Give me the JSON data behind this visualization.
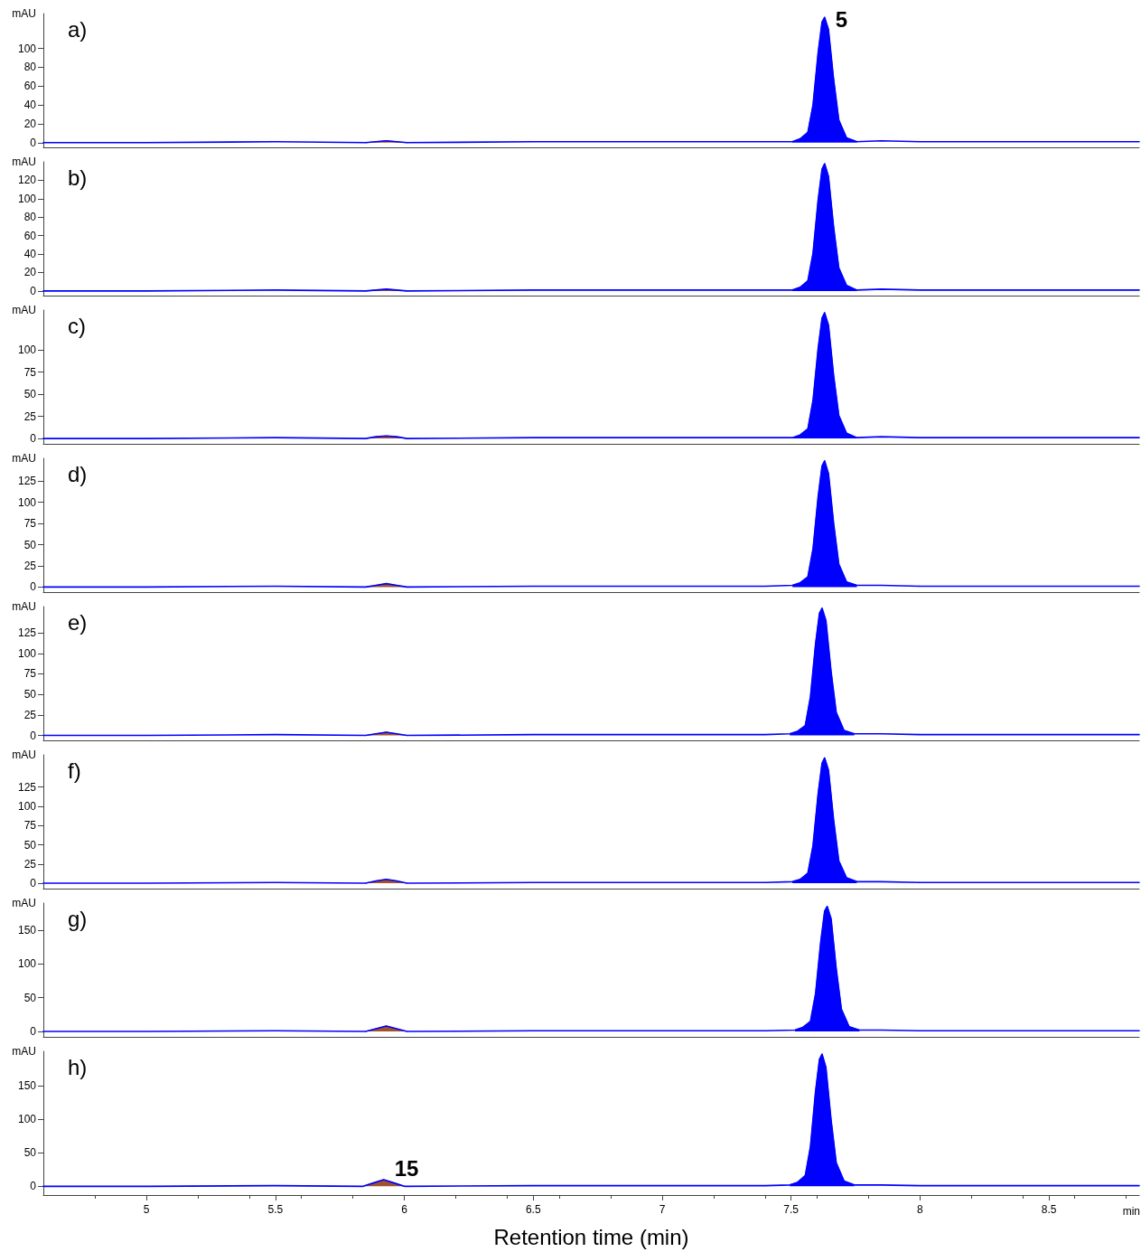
{
  "chart_data": [
    {
      "type": "line",
      "title": "a)",
      "ylabel": "mAU",
      "xlim": [
        4.6,
        8.85
      ],
      "ylim": [
        -5,
        137
      ],
      "yticks": [
        0,
        20,
        40,
        60,
        80,
        100
      ],
      "tick_labels": "y",
      "grid": false,
      "marker": "none",
      "annotations": [
        {
          "text": "5",
          "x": 7.63,
          "y": 133
        }
      ],
      "series": [
        {
          "type": "line",
          "color": "#0000ff",
          "x": [
            4.6,
            5.0,
            5.5,
            5.85,
            5.89,
            5.93,
            5.97,
            6.01,
            6.5,
            7.0,
            7.4,
            7.505,
            7.535,
            7.565,
            7.585,
            7.605,
            7.62,
            7.63,
            7.645,
            7.665,
            7.685,
            7.715,
            7.755,
            7.85,
            8.0,
            8.5,
            8.85
          ],
          "values": [
            0,
            0,
            1,
            0,
            1,
            2,
            1,
            0,
            1,
            1,
            1,
            1,
            4,
            11,
            40,
            96,
            128,
            133,
            120,
            67,
            24,
            5,
            1,
            2,
            1,
            1,
            1
          ]
        },
        {
          "type": "area",
          "color": "#0000ff",
          "x": [
            7.505,
            7.535,
            7.565,
            7.585,
            7.605,
            7.62,
            7.63,
            7.645,
            7.665,
            7.685,
            7.715,
            7.755
          ],
          "values": [
            1,
            4,
            11,
            40,
            96,
            128,
            133,
            120,
            67,
            24,
            5,
            1
          ]
        },
        {
          "type": "area",
          "color": "#a0522d",
          "x": [
            5.85,
            5.89,
            5.93,
            5.97,
            6.01
          ],
          "values": [
            0,
            1,
            2,
            1,
            0
          ]
        }
      ]
    },
    {
      "type": "line",
      "title": "b)",
      "ylabel": "mAU",
      "xlim": [
        4.6,
        8.85
      ],
      "ylim": [
        -5,
        140
      ],
      "yticks": [
        0,
        20,
        40,
        60,
        80,
        100,
        120
      ],
      "tick_labels": "y",
      "grid": false,
      "marker": "none",
      "series": [
        {
          "type": "line",
          "color": "#0000ff",
          "x": [
            4.6,
            5.0,
            5.5,
            5.85,
            5.89,
            5.93,
            5.97,
            6.01,
            6.5,
            7.0,
            7.4,
            7.505,
            7.535,
            7.565,
            7.585,
            7.605,
            7.62,
            7.63,
            7.645,
            7.665,
            7.685,
            7.715,
            7.755,
            7.85,
            8.0,
            8.5,
            8.85
          ],
          "values": [
            0,
            0,
            1,
            0,
            1,
            2,
            1,
            0,
            1,
            1,
            1,
            1,
            4,
            11,
            41,
            99,
            132,
            138,
            124,
            69,
            25,
            6,
            1,
            2,
            1,
            1,
            1
          ]
        },
        {
          "type": "area",
          "color": "#0000ff",
          "x": [
            7.505,
            7.535,
            7.565,
            7.585,
            7.605,
            7.62,
            7.63,
            7.645,
            7.665,
            7.685,
            7.715,
            7.755
          ],
          "values": [
            1,
            4,
            11,
            41,
            99,
            132,
            138,
            124,
            69,
            25,
            6,
            1
          ]
        },
        {
          "type": "area",
          "color": "#a0522d",
          "x": [
            5.85,
            5.89,
            5.93,
            5.97,
            6.01
          ],
          "values": [
            0,
            1,
            2,
            1,
            0
          ]
        }
      ]
    },
    {
      "type": "line",
      "title": "c)",
      "ylabel": "mAU",
      "xlim": [
        4.6,
        8.85
      ],
      "ylim": [
        -6,
        145
      ],
      "yticks": [
        0,
        25,
        50,
        75,
        100
      ],
      "tick_labels": "y",
      "grid": false,
      "marker": "none",
      "series": [
        {
          "type": "line",
          "color": "#0000ff",
          "x": [
            4.6,
            5.0,
            5.5,
            5.85,
            5.89,
            5.93,
            5.97,
            6.01,
            6.5,
            7.0,
            7.4,
            7.505,
            7.535,
            7.565,
            7.585,
            7.605,
            7.62,
            7.63,
            7.645,
            7.665,
            7.685,
            7.715,
            7.755,
            7.85,
            8.0,
            8.5,
            8.85
          ],
          "values": [
            0,
            0,
            1,
            0,
            2,
            3,
            2,
            0,
            1,
            1,
            1,
            1,
            4,
            11,
            43,
            102,
            136,
            142,
            128,
            71,
            26,
            6,
            1,
            2,
            1,
            1,
            1
          ]
        },
        {
          "type": "area",
          "color": "#0000ff",
          "x": [
            7.505,
            7.535,
            7.565,
            7.585,
            7.605,
            7.62,
            7.63,
            7.645,
            7.665,
            7.685,
            7.715,
            7.755
          ],
          "values": [
            1,
            4,
            11,
            43,
            102,
            136,
            142,
            128,
            71,
            26,
            6,
            1
          ]
        },
        {
          "type": "area",
          "color": "#a0522d",
          "x": [
            5.85,
            5.89,
            5.93,
            5.97,
            6.01
          ],
          "values": [
            0,
            2,
            3,
            2,
            0
          ]
        }
      ]
    },
    {
      "type": "line",
      "title": "d)",
      "ylabel": "mAU",
      "xlim": [
        4.6,
        8.85
      ],
      "ylim": [
        -6,
        152
      ],
      "yticks": [
        0,
        25,
        50,
        75,
        100,
        125
      ],
      "tick_labels": "y",
      "grid": false,
      "marker": "none",
      "series": [
        {
          "type": "line",
          "color": "#0000ff",
          "x": [
            4.6,
            5.0,
            5.5,
            5.85,
            5.89,
            5.93,
            5.97,
            6.01,
            6.5,
            7.0,
            7.4,
            7.505,
            7.535,
            7.565,
            7.585,
            7.605,
            7.62,
            7.63,
            7.645,
            7.665,
            7.685,
            7.715,
            7.755,
            7.85,
            8.0,
            8.5,
            8.85
          ],
          "values": [
            0,
            0,
            1,
            0,
            2,
            4,
            2,
            0,
            1,
            1,
            1,
            2,
            5,
            12,
            45,
            107,
            143,
            149,
            134,
            75,
            27,
            6,
            2,
            2,
            1,
            1,
            1
          ]
        },
        {
          "type": "area",
          "color": "#0000ff",
          "x": [
            7.505,
            7.535,
            7.565,
            7.585,
            7.605,
            7.62,
            7.63,
            7.645,
            7.665,
            7.685,
            7.715,
            7.755
          ],
          "values": [
            2,
            5,
            12,
            45,
            107,
            143,
            149,
            134,
            75,
            27,
            6,
            2
          ]
        },
        {
          "type": "area",
          "color": "#a0522d",
          "x": [
            5.85,
            5.89,
            5.93,
            5.97,
            6.01
          ],
          "values": [
            0,
            2,
            4,
            2,
            0
          ]
        }
      ]
    },
    {
      "type": "line",
      "title": "e)",
      "ylabel": "mAU",
      "xlim": [
        4.6,
        8.85
      ],
      "ylim": [
        -6,
        157
      ],
      "yticks": [
        0,
        25,
        50,
        75,
        100,
        125
      ],
      "tick_labels": "y",
      "grid": false,
      "marker": "none",
      "series": [
        {
          "type": "line",
          "color": "#0000ff",
          "x": [
            4.6,
            5.0,
            5.5,
            5.85,
            5.89,
            5.93,
            5.97,
            6.01,
            6.5,
            7.0,
            7.4,
            7.495,
            7.525,
            7.555,
            7.575,
            7.595,
            7.61,
            7.62,
            7.635,
            7.655,
            7.675,
            7.705,
            7.745,
            7.85,
            8.0,
            8.5,
            8.85
          ],
          "values": [
            0,
            0,
            1,
            0,
            2,
            4,
            2,
            0,
            1,
            1,
            1,
            2,
            5,
            12,
            47,
            112,
            149,
            155,
            140,
            78,
            28,
            6,
            2,
            2,
            1,
            1,
            1
          ]
        },
        {
          "type": "area",
          "color": "#0000ff",
          "x": [
            7.495,
            7.525,
            7.555,
            7.575,
            7.595,
            7.61,
            7.62,
            7.635,
            7.655,
            7.675,
            7.705,
            7.745
          ],
          "values": [
            2,
            5,
            12,
            47,
            112,
            149,
            155,
            140,
            78,
            28,
            6,
            2
          ]
        },
        {
          "type": "area",
          "color": "#a0522d",
          "x": [
            5.85,
            5.89,
            5.93,
            5.97,
            6.01
          ],
          "values": [
            0,
            2,
            4,
            2,
            0
          ]
        }
      ]
    },
    {
      "type": "line",
      "title": "f)",
      "ylabel": "mAU",
      "xlim": [
        4.6,
        8.85
      ],
      "ylim": [
        -7,
        167
      ],
      "yticks": [
        0,
        25,
        50,
        75,
        100,
        125
      ],
      "tick_labels": "y",
      "grid": false,
      "marker": "none",
      "series": [
        {
          "type": "line",
          "color": "#0000ff",
          "x": [
            4.6,
            5.0,
            5.5,
            5.85,
            5.89,
            5.93,
            5.97,
            6.01,
            6.5,
            7.0,
            7.4,
            7.505,
            7.535,
            7.565,
            7.585,
            7.605,
            7.62,
            7.63,
            7.645,
            7.665,
            7.685,
            7.715,
            7.755,
            7.85,
            8.0,
            8.5,
            8.85
          ],
          "values": [
            0,
            0,
            1,
            0,
            3,
            5,
            3,
            0,
            1,
            1,
            1,
            2,
            5,
            13,
            49,
            117,
            156,
            163,
            147,
            82,
            29,
            7,
            2,
            2,
            1,
            1,
            1
          ]
        },
        {
          "type": "area",
          "color": "#0000ff",
          "x": [
            7.505,
            7.535,
            7.565,
            7.585,
            7.605,
            7.62,
            7.63,
            7.645,
            7.665,
            7.685,
            7.715,
            7.755
          ],
          "values": [
            2,
            5,
            13,
            49,
            117,
            156,
            163,
            147,
            82,
            29,
            7,
            2
          ]
        },
        {
          "type": "area",
          "color": "#a0522d",
          "x": [
            5.85,
            5.89,
            5.93,
            5.97,
            6.01
          ],
          "values": [
            0,
            3,
            5,
            3,
            0
          ]
        }
      ]
    },
    {
      "type": "line",
      "title": "g)",
      "ylabel": "mAU",
      "xlim": [
        4.6,
        8.85
      ],
      "ylim": [
        -8,
        190
      ],
      "yticks": [
        0,
        50,
        100,
        150
      ],
      "tick_labels": "y",
      "grid": false,
      "marker": "none",
      "series": [
        {
          "type": "line",
          "color": "#0000ff",
          "x": [
            4.6,
            5.0,
            5.5,
            5.85,
            5.89,
            5.93,
            5.97,
            6.01,
            6.5,
            7.0,
            7.4,
            7.515,
            7.545,
            7.575,
            7.595,
            7.615,
            7.63,
            7.64,
            7.655,
            7.675,
            7.695,
            7.725,
            7.765,
            7.85,
            8.0,
            8.5,
            8.85
          ],
          "values": [
            0,
            0,
            1,
            0,
            4,
            8,
            4,
            0,
            1,
            1,
            1,
            2,
            6,
            15,
            56,
            133,
            178,
            185,
            167,
            93,
            33,
            7,
            2,
            2,
            1,
            1,
            1
          ]
        },
        {
          "type": "area",
          "color": "#0000ff",
          "x": [
            7.515,
            7.545,
            7.575,
            7.595,
            7.615,
            7.63,
            7.64,
            7.655,
            7.675,
            7.695,
            7.725,
            7.765
          ],
          "values": [
            2,
            6,
            15,
            56,
            133,
            178,
            185,
            167,
            93,
            33,
            7,
            2
          ]
        },
        {
          "type": "area",
          "color": "#a0522d",
          "x": [
            5.85,
            5.89,
            5.93,
            5.97,
            6.01
          ],
          "values": [
            0,
            4,
            8,
            4,
            0
          ]
        }
      ]
    },
    {
      "type": "line",
      "title": "h)",
      "ylabel": "mAU",
      "xlabel": "Retention time (min)",
      "xlim": [
        4.6,
        8.85
      ],
      "xticks": [
        5,
        5.5,
        6,
        6.5,
        7,
        7.5,
        8,
        8.5
      ],
      "ylim": [
        -13,
        201
      ],
      "yticks": [
        0,
        50,
        100,
        150
      ],
      "grid": false,
      "marker": "none",
      "annotations": [
        {
          "text": "15",
          "x": 5.92,
          "y": 10
        },
        "min"
      ],
      "series": [
        {
          "type": "line",
          "color": "#0000ff",
          "x": [
            4.6,
            5.0,
            5.5,
            5.84,
            5.88,
            5.92,
            5.96,
            6.0,
            6.5,
            7.0,
            7.4,
            7.495,
            7.525,
            7.555,
            7.575,
            7.595,
            7.61,
            7.62,
            7.635,
            7.655,
            7.675,
            7.705,
            7.745,
            7.85,
            8.0,
            8.5,
            8.85
          ],
          "values": [
            0,
            0,
            1,
            0,
            5,
            10,
            5,
            0,
            1,
            1,
            1,
            2,
            6,
            16,
            59,
            142,
            189,
            197,
            177,
            99,
            35,
            8,
            2,
            2,
            1,
            1,
            1
          ]
        },
        {
          "type": "area",
          "color": "#0000ff",
          "x": [
            7.495,
            7.525,
            7.555,
            7.575,
            7.595,
            7.61,
            7.62,
            7.635,
            7.655,
            7.675,
            7.705,
            7.745
          ],
          "values": [
            2,
            6,
            16,
            59,
            142,
            189,
            197,
            177,
            99,
            35,
            8,
            2
          ]
        },
        {
          "type": "area",
          "color": "#a0522d",
          "x": [
            5.84,
            5.88,
            5.92,
            5.96,
            6.0
          ],
          "values": [
            0,
            5,
            10,
            5,
            0
          ]
        }
      ]
    }
  ]
}
